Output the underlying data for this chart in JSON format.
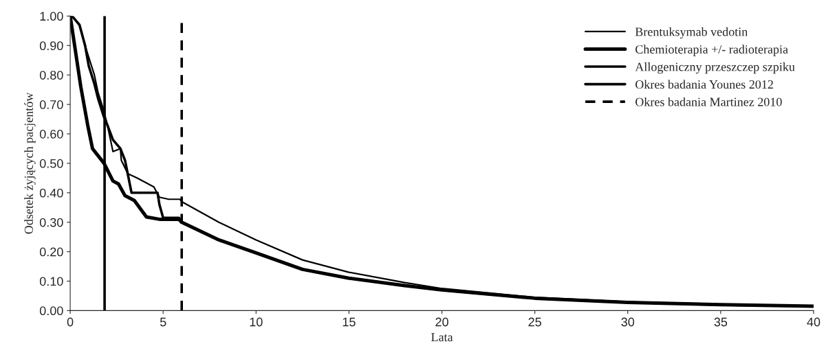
{
  "chart_data": {
    "type": "line",
    "xlabel": "Lata",
    "ylabel": "Odsetek żyjących pacjentów",
    "xlim": [
      0,
      40
    ],
    "xticks": [
      0,
      5,
      10,
      15,
      20,
      25,
      30,
      35,
      40
    ],
    "ylim": [
      0,
      1
    ],
    "yticks": [
      {
        "value": 0,
        "label": "0.00"
      },
      {
        "value": 0.1,
        "label": "0.10"
      },
      {
        "value": 0.2,
        "label": "0.20"
      },
      {
        "value": 0.3,
        "label": "0.30"
      },
      {
        "value": 0.4,
        "label": "0.40"
      },
      {
        "value": 0.5,
        "label": "0.50"
      },
      {
        "value": 0.6,
        "label": "0.60"
      },
      {
        "value": 0.7,
        "label": "0.70"
      },
      {
        "value": 0.8,
        "label": "0.80"
      },
      {
        "value": 0.9,
        "label": "0.90"
      },
      {
        "value": 1.0,
        "label": "1.00"
      }
    ],
    "grid": false,
    "legend": "top right",
    "series": [
      {
        "name": "Brentuksymab vedotin",
        "color": "#000000",
        "x": [
          0,
          0.1,
          0.5,
          0.8,
          1.0,
          1.3,
          1.5,
          1.8,
          2.0,
          2.3,
          2.7,
          2.75,
          3.1,
          3.6,
          4.5,
          4.8,
          5.3,
          5.9,
          6,
          8,
          10,
          12.5,
          15,
          18,
          20,
          25,
          30,
          35,
          40
        ],
        "values": [
          1.0,
          1.0,
          0.97,
          0.9,
          0.86,
          0.8,
          0.74,
          0.68,
          0.63,
          0.54,
          0.55,
          0.51,
          0.465,
          0.45,
          0.42,
          0.385,
          0.378,
          0.378,
          0.37,
          0.3,
          0.24,
          0.172,
          0.13,
          0.095,
          0.075,
          0.045,
          0.03,
          0.02,
          0.015
        ]
      },
      {
        "name": "Chemioterapia +/- radioterapia",
        "color": "#000000",
        "x": [
          0,
          0.57,
          0.94,
          1.2,
          1.82,
          2.3,
          2.6,
          2.95,
          3.45,
          4.1,
          4.8,
          5.85,
          6,
          8,
          10,
          12.5,
          15,
          18,
          20,
          25,
          30,
          35,
          40
        ],
        "values": [
          1.0,
          0.76,
          0.63,
          0.55,
          0.5,
          0.44,
          0.43,
          0.39,
          0.374,
          0.318,
          0.31,
          0.31,
          0.3,
          0.24,
          0.196,
          0.14,
          0.11,
          0.085,
          0.07,
          0.042,
          0.028,
          0.02,
          0.015
        ]
      },
      {
        "name": "Allogeniczny przeszczep szpiku",
        "color": "#000000",
        "x": [
          0,
          0.1,
          0.5,
          0.8,
          1.0,
          1.3,
          1.5,
          1.8,
          2.0,
          2.3,
          2.7,
          2.95,
          3.3,
          4.7,
          4.8,
          5.0,
          5.85,
          6,
          8,
          10,
          12.5,
          15,
          18,
          20,
          25,
          30,
          35,
          40
        ],
        "values": [
          1.0,
          1.0,
          0.97,
          0.9,
          0.83,
          0.77,
          0.72,
          0.66,
          0.63,
          0.58,
          0.55,
          0.51,
          0.4,
          0.4,
          0.36,
          0.315,
          0.315,
          0.3,
          0.24,
          0.196,
          0.14,
          0.11,
          0.085,
          0.07,
          0.042,
          0.028,
          0.02,
          0.015
        ]
      },
      {
        "name": "Okres badania Younes 2012",
        "color": "#000000",
        "x": [
          1.85,
          1.85
        ],
        "values": [
          0,
          1
        ],
        "line_style": "solid"
      },
      {
        "name": "Okres badania Martinez 2010",
        "color": "#000000",
        "x": [
          6.0,
          6.0
        ],
        "values": [
          0,
          1
        ],
        "line_style": "dashed"
      }
    ]
  }
}
